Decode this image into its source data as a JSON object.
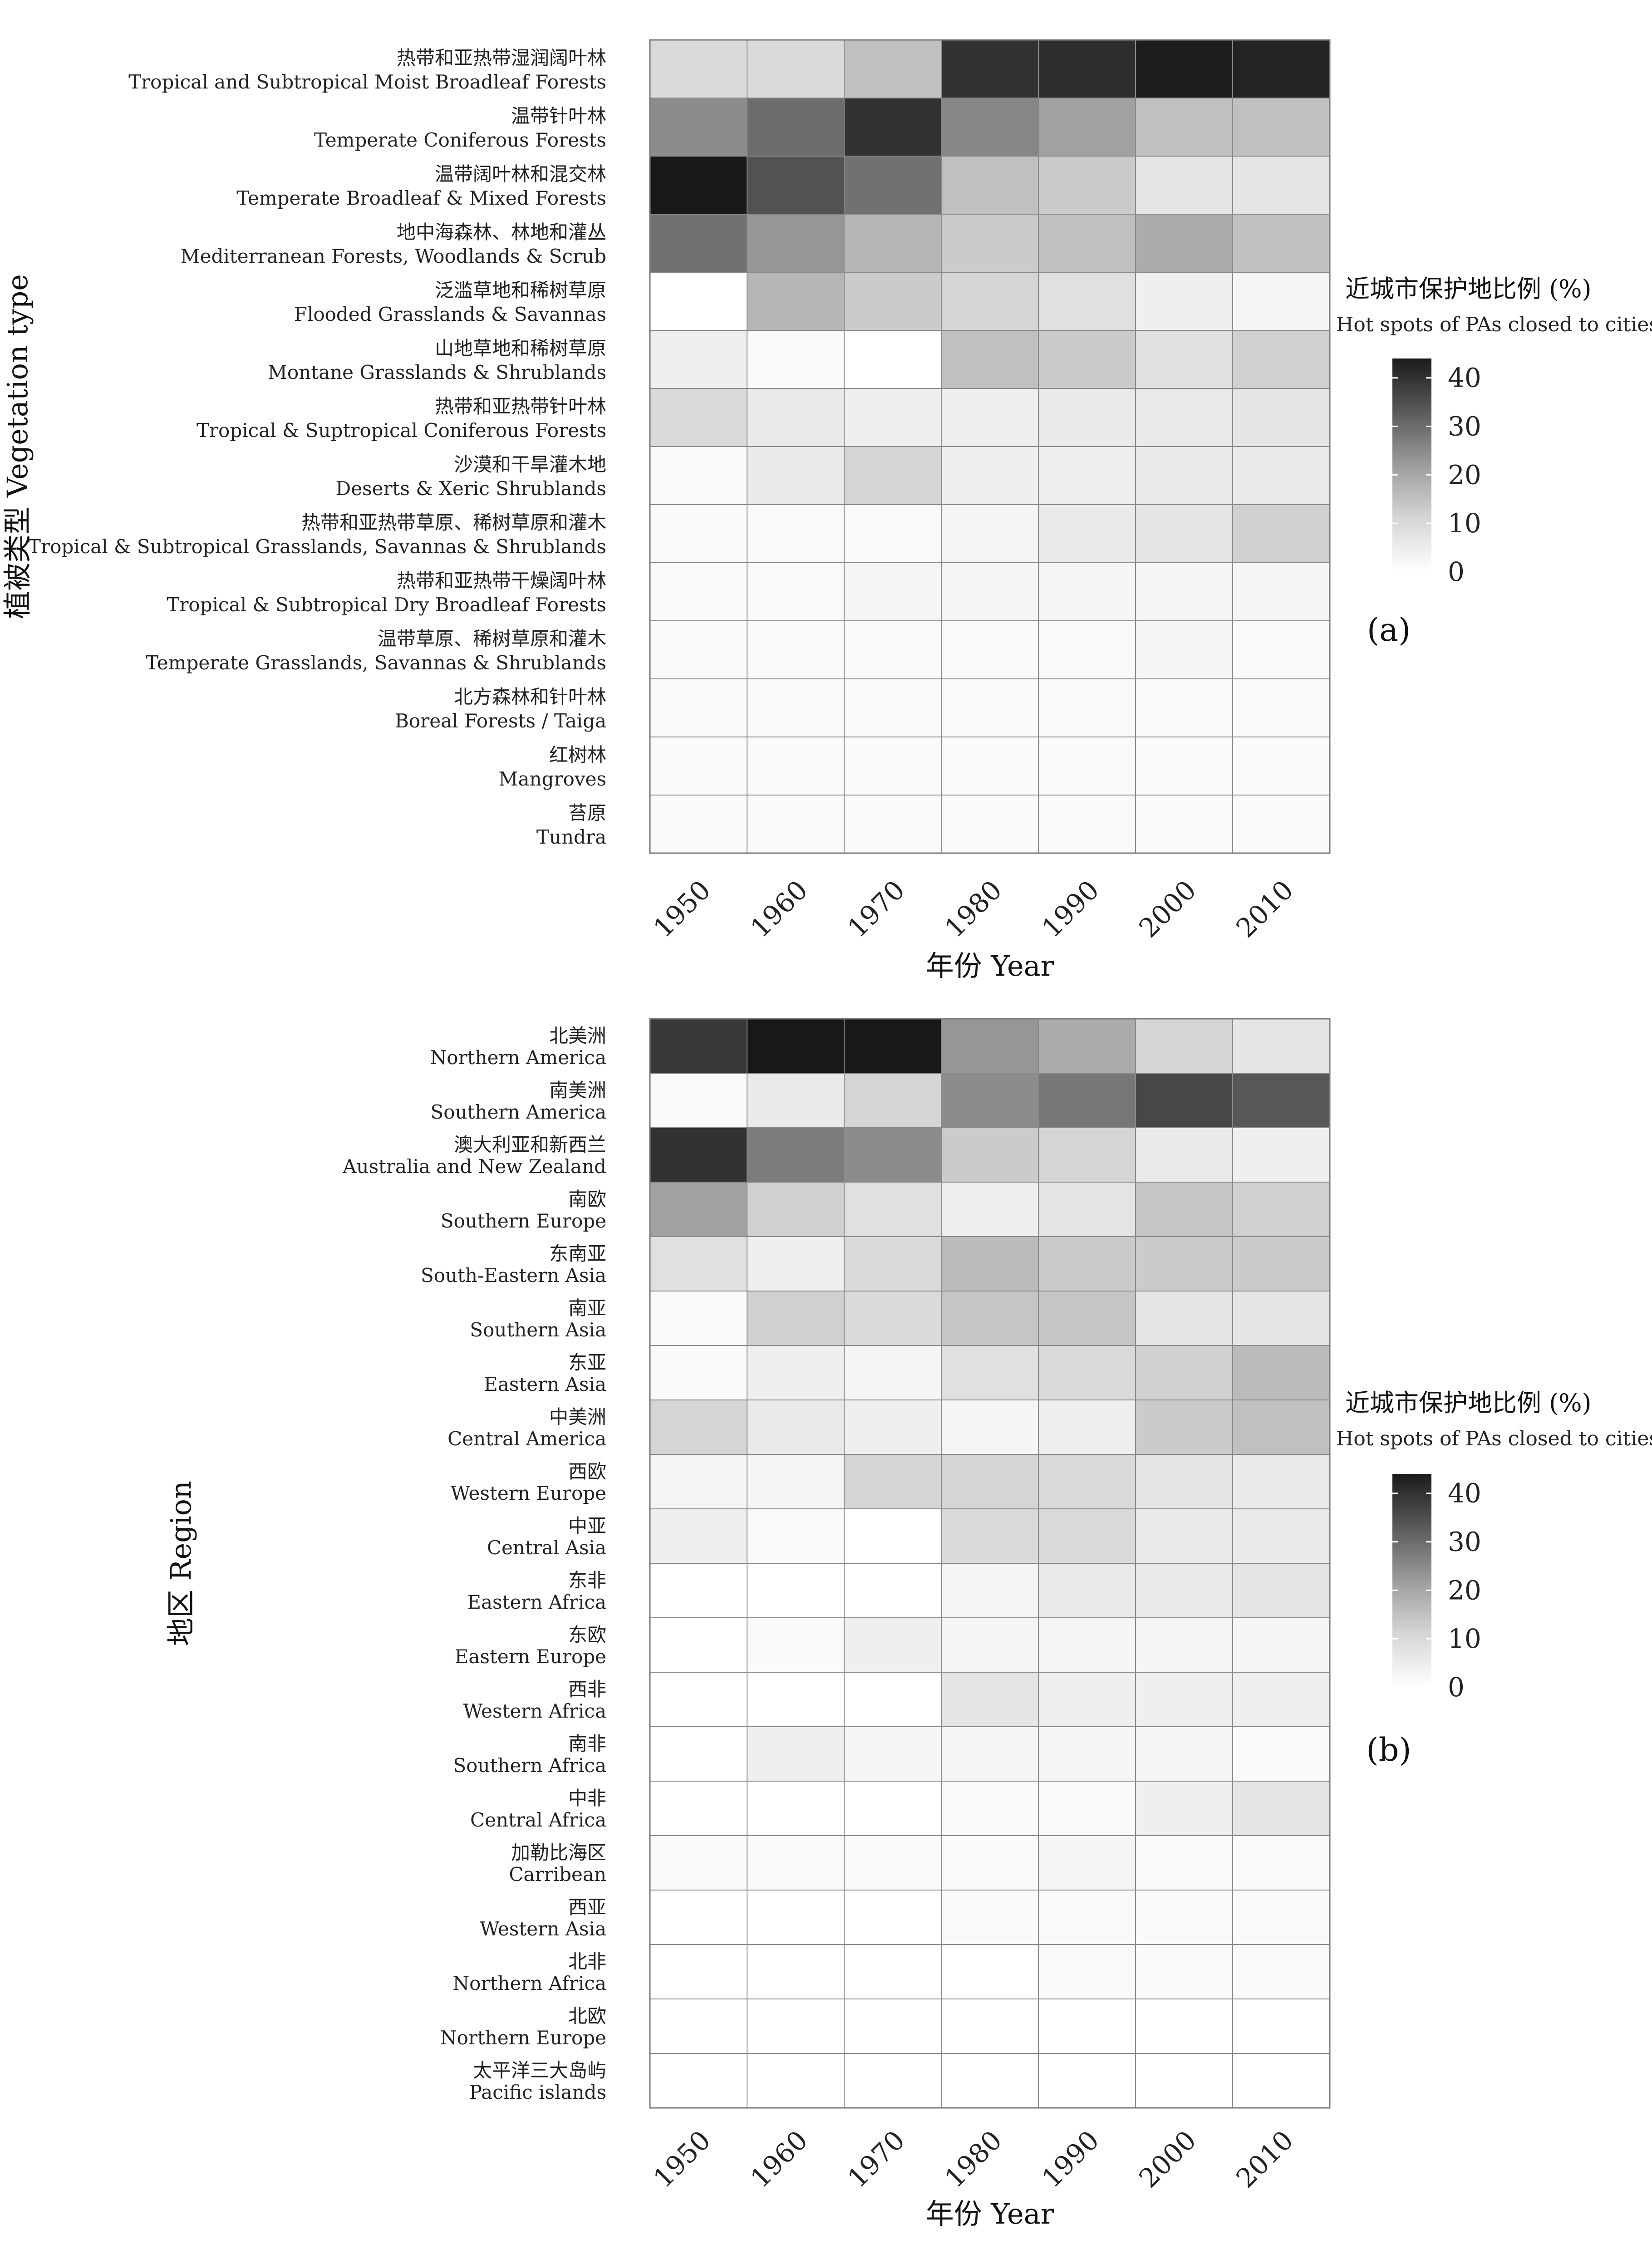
{
  "chart_data": [
    {
      "type": "heatmap",
      "panel_label": "(a)",
      "xlabel": "年份 Year",
      "ylabel": "植被类型 Vegetation type",
      "x": [
        "1950",
        "1960",
        "1970",
        "1980",
        "1990",
        "2000",
        "2010"
      ],
      "y": [
        {
          "zh": "热带和亚热带湿润阔叶林",
          "en": "Tropical and Subtropical Moist Broadleaf Forests"
        },
        {
          "zh": "温带针叶林",
          "en": "Temperate Coniferous Forests"
        },
        {
          "zh": "温带阔叶林和混交林",
          "en": "Temperate Broadleaf & Mixed Forests"
        },
        {
          "zh": "地中海森林、林地和灌丛",
          "en": "Mediterranean Forests, Woodlands & Scrub"
        },
        {
          "zh": "泛滥草地和稀树草原",
          "en": "Flooded Grasslands & Savannas"
        },
        {
          "zh": "山地草地和稀树草原",
          "en": "Montane Grasslands & Shrublands"
        },
        {
          "zh": "热带和亚热带针叶林",
          "en": "Tropical & Suptropical Coniferous Forests"
        },
        {
          "zh": "沙漠和干旱灌木地",
          "en": "Deserts & Xeric Shrublands"
        },
        {
          "zh": "热带和亚热带草原、稀树草原和灌木",
          "en": "Tropical & Subtropical Grasslands, Savannas & Shrublands"
        },
        {
          "zh": "热带和亚热带干燥阔叶林",
          "en": "Tropical & Subtropical Dry Broadleaf Forests"
        },
        {
          "zh": "温带草原、稀树草原和灌木",
          "en": "Temperate Grasslands, Savannas & Shrublands"
        },
        {
          "zh": "北方森林和针叶林",
          "en": "Boreal Forests / Taiga"
        },
        {
          "zh": "红树林",
          "en": "Mangroves"
        },
        {
          "zh": "苔原",
          "en": "Tundra"
        }
      ],
      "values": [
        [
          7,
          7,
          12,
          39,
          40,
          43,
          42
        ],
        [
          22,
          28,
          39,
          23,
          18,
          12,
          12
        ],
        [
          44,
          33,
          27,
          12,
          10,
          5,
          5
        ],
        [
          27,
          20,
          14,
          10,
          12,
          16,
          12
        ],
        [
          0,
          14,
          10,
          8,
          6,
          3,
          2
        ],
        [
          3,
          1,
          0,
          12,
          10,
          6,
          9
        ],
        [
          7,
          4,
          3,
          3,
          4,
          4,
          5
        ],
        [
          1,
          4,
          8,
          3,
          3,
          4,
          4
        ],
        [
          1,
          1,
          1,
          2,
          4,
          5,
          9
        ],
        [
          1,
          1,
          2,
          2,
          2,
          2,
          2
        ],
        [
          1,
          1,
          1,
          1,
          1,
          2,
          1
        ],
        [
          1,
          1,
          1,
          1,
          1,
          1,
          1
        ],
        [
          1,
          1,
          1,
          1,
          1,
          1,
          1
        ],
        [
          1,
          1,
          1,
          1,
          1,
          1,
          1
        ]
      ],
      "legend": {
        "title": "近城市保护地比例 (%)",
        "subtitle": "Hot spots of PAs closed to cities",
        "ticks": [
          "40",
          "30",
          "20",
          "10",
          "0"
        ],
        "range": [
          0,
          44
        ]
      }
    },
    {
      "type": "heatmap",
      "panel_label": "(b)",
      "xlabel": "年份 Year",
      "ylabel": "地区 Region",
      "x": [
        "1950",
        "1960",
        "1970",
        "1980",
        "1990",
        "2000",
        "2010"
      ],
      "y": [
        {
          "zh": "北美洲",
          "en": "Northern America"
        },
        {
          "zh": "南美洲",
          "en": "Southern America"
        },
        {
          "zh": "澳大利亚和新西兰",
          "en": "Australia and New Zealand"
        },
        {
          "zh": "南欧",
          "en": "Southern Europe"
        },
        {
          "zh": "东南亚",
          "en": "South-Eastern Asia"
        },
        {
          "zh": "南亚",
          "en": "Southern Asia"
        },
        {
          "zh": "东亚",
          "en": "Eastern Asia"
        },
        {
          "zh": "中美洲",
          "en": "Central America"
        },
        {
          "zh": "西欧",
          "en": "Western Europe"
        },
        {
          "zh": "中亚",
          "en": "Central Asia"
        },
        {
          "zh": "东非",
          "en": "Eastern Africa"
        },
        {
          "zh": "东欧",
          "en": "Eastern Europe"
        },
        {
          "zh": "西非",
          "en": "Western Africa"
        },
        {
          "zh": "南非",
          "en": "Southern Africa"
        },
        {
          "zh": "中非",
          "en": "Central Africa"
        },
        {
          "zh": "加勒比海区",
          "en": "Carribean"
        },
        {
          "zh": "西亚",
          "en": "Western Asia"
        },
        {
          "zh": "北非",
          "en": "Northern Africa"
        },
        {
          "zh": "北欧",
          "en": "Northern Europe"
        },
        {
          "zh": "太平洋三大岛屿",
          "en": "Pacific islands"
        }
      ],
      "values": [
        [
          38,
          44,
          44,
          20,
          16,
          8,
          5
        ],
        [
          1,
          4,
          8,
          22,
          26,
          35,
          32
        ],
        [
          39,
          25,
          22,
          10,
          8,
          4,
          3
        ],
        [
          18,
          9,
          6,
          3,
          5,
          11,
          9
        ],
        [
          6,
          3,
          7,
          13,
          10,
          10,
          10
        ],
        [
          1,
          9,
          7,
          11,
          11,
          5,
          5
        ],
        [
          1,
          3,
          2,
          6,
          7,
          9,
          13
        ],
        [
          8,
          4,
          3,
          2,
          3,
          10,
          12
        ],
        [
          2,
          2,
          8,
          8,
          7,
          5,
          4
        ],
        [
          3,
          1,
          0,
          7,
          7,
          4,
          4
        ],
        [
          0,
          0,
          0,
          2,
          4,
          4,
          5
        ],
        [
          0,
          1,
          3,
          2,
          2,
          2,
          2
        ],
        [
          0,
          0,
          0,
          5,
          3,
          3,
          3
        ],
        [
          0,
          3,
          2,
          2,
          2,
          2,
          1
        ],
        [
          0,
          0,
          0,
          1,
          1,
          3,
          5
        ],
        [
          1,
          1,
          1,
          1,
          2,
          1,
          1
        ],
        [
          0,
          0,
          0,
          1,
          1,
          1,
          1
        ],
        [
          0,
          0,
          0,
          0,
          1,
          1,
          1
        ],
        [
          0,
          0,
          0,
          0,
          0,
          0,
          0
        ],
        [
          0,
          0,
          0,
          0,
          0,
          0,
          0
        ]
      ],
      "legend": {
        "title": "近城市保护地比例 (%)",
        "subtitle": "Hot spots of PAs closed to cities",
        "ticks": [
          "40",
          "30",
          "20",
          "10",
          "0"
        ],
        "range": [
          0,
          44
        ]
      }
    }
  ]
}
